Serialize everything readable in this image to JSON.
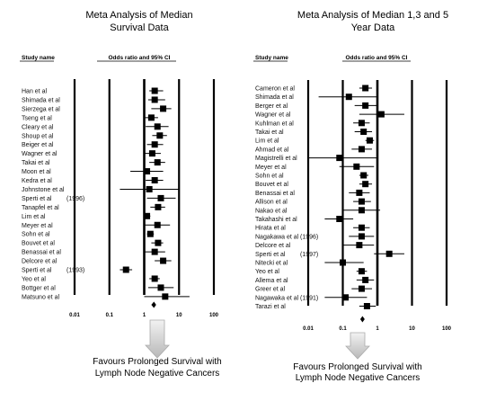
{
  "chart_data": [
    {
      "type": "forest",
      "title_lines": [
        "Meta Analysis of Median",
        "Survival Data"
      ],
      "study_col_header": "Study name",
      "stat_col_header": "Odds ratio and 95% CI",
      "x_scale": "log",
      "x_ticks": [
        0.01,
        0.1,
        1,
        10,
        100
      ],
      "x_tick_labels": [
        "0.01",
        "0.1",
        "1",
        "10",
        "100"
      ],
      "x_range": [
        0.01,
        100
      ],
      "caption_lines": [
        "Favours Prolonged Survival with",
        "Lymph Node Negative Cancers"
      ],
      "studies": [
        {
          "name": "Han et al",
          "or": 2.0,
          "lo": 1.4,
          "hi": 3.5
        },
        {
          "name": "Shimada et al",
          "or": 2.0,
          "lo": 1.3,
          "hi": 4.0
        },
        {
          "name": "Sierzega et al",
          "or": 3.5,
          "lo": 1.6,
          "hi": 6.0
        },
        {
          "name": "Tseng et al",
          "or": 1.6,
          "lo": 1.0,
          "hi": 2.5
        },
        {
          "name": "Cleary et al",
          "or": 2.4,
          "lo": 1.1,
          "hi": 5.0
        },
        {
          "name": "Shoup et al",
          "or": 2.8,
          "lo": 1.7,
          "hi": 4.5
        },
        {
          "name": "Beiger et al",
          "or": 2.0,
          "lo": 1.2,
          "hi": 3.5
        },
        {
          "name": "Wagner et al",
          "or": 1.7,
          "lo": 1.0,
          "hi": 3.0
        },
        {
          "name": "Takai et al",
          "or": 2.4,
          "lo": 1.4,
          "hi": 4.0
        },
        {
          "name": "Moon et al",
          "or": 1.2,
          "lo": 0.4,
          "hi": 3.5
        },
        {
          "name": "Kedra et al",
          "or": 2.0,
          "lo": 1.1,
          "hi": 3.5
        },
        {
          "name": "Johnstone et al",
          "or": 1.4,
          "lo": 0.2,
          "hi": 10.0
        },
        {
          "name": "Sperti et al",
          "year": "(1996)",
          "or": 3.0,
          "lo": 1.2,
          "hi": 8.0
        },
        {
          "name": "Tanapfel et al",
          "or": 2.5,
          "lo": 1.5,
          "hi": 4.0
        },
        {
          "name": "Lim et al",
          "or": 1.2,
          "lo": 1.0,
          "hi": 1.5
        },
        {
          "name": "Meyer et al",
          "or": 2.4,
          "lo": 1.0,
          "hi": 5.5
        },
        {
          "name": "Sohn et al",
          "or": 1.5,
          "lo": 1.2,
          "hi": 1.9
        },
        {
          "name": "Bouvet et al",
          "or": 2.5,
          "lo": 1.6,
          "hi": 3.5
        },
        {
          "name": "Benassai et al",
          "or": 2.0,
          "lo": 1.0,
          "hi": 4.0
        },
        {
          "name": "Delcore et al",
          "or": 3.5,
          "lo": 2.0,
          "hi": 6.0
        },
        {
          "name": "Sperti et al",
          "year": "(1993)",
          "or": 0.3,
          "lo": 0.2,
          "hi": 0.45
        },
        {
          "name": "Yeo et al",
          "or": 2.0,
          "lo": 1.4,
          "hi": 2.8
        },
        {
          "name": "Bottger et al",
          "or": 3.0,
          "lo": 1.3,
          "hi": 7.0
        },
        {
          "name": "Matsuno et al",
          "or": 4.0,
          "lo": 1.0,
          "hi": 20.0
        }
      ],
      "pooled": {
        "or": 1.9,
        "lo": 1.6,
        "hi": 2.2
      }
    },
    {
      "type": "forest",
      "title_lines": [
        "Meta Analysis of Median 1,3 and 5",
        "Year Data"
      ],
      "study_col_header": "Study name",
      "stat_col_header": "Odds ratio and 95% CI",
      "x_scale": "log",
      "x_ticks": [
        0.01,
        0.1,
        1,
        10,
        100
      ],
      "x_tick_labels": [
        "0.01",
        "0.1",
        "1",
        "10",
        "100"
      ],
      "x_range": [
        0.01,
        100
      ],
      "caption_lines": [
        "Favours Prolonged Survival with",
        "Lymph Node Negative Cancers"
      ],
      "studies": [
        {
          "name": "Cameron et al",
          "or": 0.45,
          "lo": 0.3,
          "hi": 0.7
        },
        {
          "name": "Shimada et al",
          "or": 0.15,
          "lo": 0.02,
          "hi": 1.0
        },
        {
          "name": "Berger et al",
          "or": 0.45,
          "lo": 0.22,
          "hi": 1.0
        },
        {
          "name": "Wagner et al",
          "or": 1.3,
          "lo": 0.3,
          "hi": 6.0
        },
        {
          "name": "Kuhlman et al",
          "or": 0.35,
          "lo": 0.2,
          "hi": 0.6
        },
        {
          "name": "Takai et al",
          "or": 0.4,
          "lo": 0.22,
          "hi": 0.7
        },
        {
          "name": "Lim et al",
          "or": 0.6,
          "lo": 0.45,
          "hi": 0.8
        },
        {
          "name": "Ahmad et al",
          "or": 0.35,
          "lo": 0.18,
          "hi": 0.7
        },
        {
          "name": "Magistrelli et al",
          "or": 0.08,
          "lo": 0.01,
          "hi": 1.0
        },
        {
          "name": "Meyer et al",
          "or": 0.25,
          "lo": 0.08,
          "hi": 0.8
        },
        {
          "name": "Sohn et al",
          "or": 0.4,
          "lo": 0.3,
          "hi": 0.55
        },
        {
          "name": "Bouvet et al",
          "or": 0.45,
          "lo": 0.3,
          "hi": 0.7
        },
        {
          "name": "Benassai et al",
          "or": 0.3,
          "lo": 0.15,
          "hi": 0.6
        },
        {
          "name": "Allison et al",
          "or": 0.35,
          "lo": 0.2,
          "hi": 0.65
        },
        {
          "name": "Nakao et al",
          "or": 0.35,
          "lo": 0.1,
          "hi": 1.2
        },
        {
          "name": "Takahashi et al",
          "or": 0.08,
          "lo": 0.03,
          "hi": 0.2
        },
        {
          "name": "Hirata et al",
          "or": 0.35,
          "lo": 0.2,
          "hi": 0.6
        },
        {
          "name": "Nagakawa et al",
          "year": "(1996)",
          "or": 0.35,
          "lo": 0.15,
          "hi": 0.8
        },
        {
          "name": "Delcore et al",
          "or": 0.3,
          "lo": 0.1,
          "hi": 0.8
        },
        {
          "name": "Sperti et al",
          "year": "(1997)",
          "or": 2.2,
          "lo": 0.8,
          "hi": 6.0
        },
        {
          "name": "Nitecki et al",
          "or": 0.1,
          "lo": 0.03,
          "hi": 0.4
        },
        {
          "name": "Yeo et al",
          "or": 0.35,
          "lo": 0.25,
          "hi": 0.5
        },
        {
          "name": "Allema et al",
          "or": 0.45,
          "lo": 0.25,
          "hi": 0.8
        },
        {
          "name": "Greer et al",
          "or": 0.35,
          "lo": 0.18,
          "hi": 0.7
        },
        {
          "name": "Nagawaka et al",
          "year": "(1991)",
          "or": 0.12,
          "lo": 0.03,
          "hi": 0.5
        },
        {
          "name": "Tarazi et al",
          "or": 0.5,
          "lo": 0.3,
          "hi": 0.9
        }
      ],
      "pooled": {
        "or": 0.37,
        "lo": 0.32,
        "hi": 0.43
      }
    }
  ]
}
